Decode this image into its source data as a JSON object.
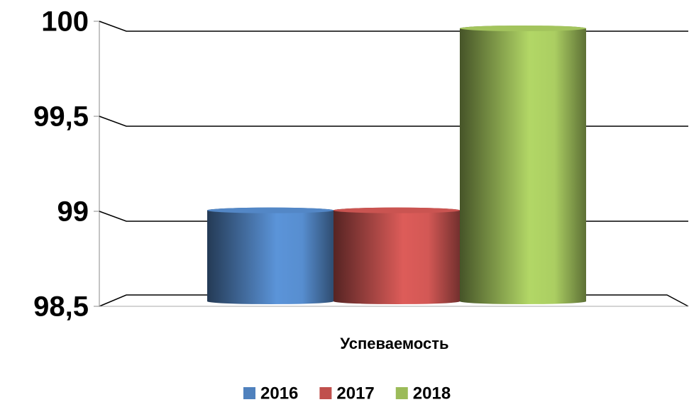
{
  "chart_data": {
    "type": "bar",
    "categories": [
      "Успеваемость"
    ],
    "series": [
      {
        "name": "2016",
        "color": "#4f81bd",
        "values": [
          99
        ]
      },
      {
        "name": "2017",
        "color": "#c0504d",
        "values": [
          99
        ]
      },
      {
        "name": "2018",
        "color": "#9bbb59",
        "values": [
          100
        ]
      }
    ],
    "ylim": [
      98.5,
      100
    ],
    "yticks": [
      {
        "value": 98.5,
        "label": "98,5"
      },
      99,
      {
        "value": 99.5,
        "label": "99,5"
      },
      100
    ],
    "grid": true,
    "legend": "bottom"
  }
}
